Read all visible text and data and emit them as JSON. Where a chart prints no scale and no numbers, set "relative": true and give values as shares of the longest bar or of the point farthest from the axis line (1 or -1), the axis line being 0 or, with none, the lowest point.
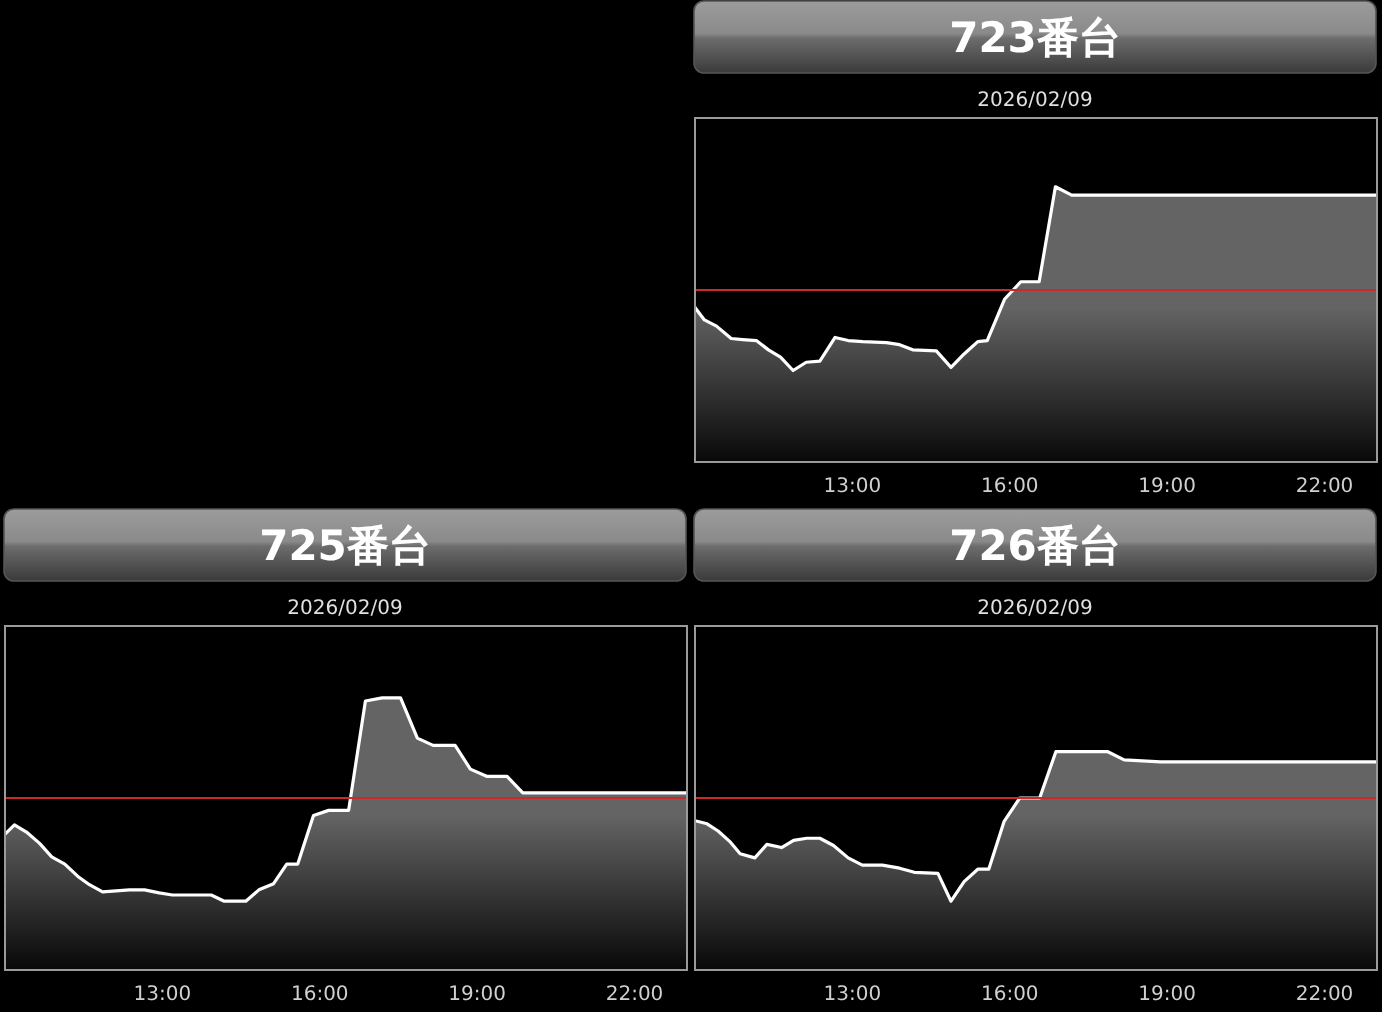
{
  "chart_data": [
    {
      "type": "area",
      "title": "723番台",
      "subtitle": "2026/02/09",
      "relative": true,
      "tick_labels": "x",
      "color": "#646464",
      "xlim": [
        10,
        23
      ],
      "xticks": [
        {
          "value": 13,
          "label": "13:00"
        },
        {
          "value": 16,
          "label": "16:00"
        },
        {
          "value": 19,
          "label": "19:00"
        },
        {
          "value": 22,
          "label": "22:00"
        }
      ],
      "ref_lines": [
        {
          "axis": "y",
          "value": 0,
          "color": "#cc2a2a"
        }
      ],
      "x": [
        10,
        10.18,
        10.41,
        10.69,
        10.91,
        11.17,
        11.4,
        11.63,
        11.87,
        12.12,
        12.38,
        12.67,
        12.92,
        13.2,
        13.65,
        13.9,
        14.15,
        14.6,
        14.88,
        15.13,
        15.39,
        15.57,
        15.9,
        16.21,
        16.56,
        16.87,
        17.18,
        23
      ],
      "values": [
        -0.17,
        -0.29,
        -0.35,
        -0.47,
        -0.48,
        -0.49,
        -0.58,
        -0.65,
        -0.78,
        -0.7,
        -0.69,
        -0.46,
        -0.49,
        -0.5,
        -0.51,
        -0.53,
        -0.58,
        -0.59,
        -0.75,
        -0.62,
        -0.5,
        -0.49,
        -0.09,
        0.08,
        0.08,
        1,
        0.92,
        0.92
      ]
    },
    {
      "type": "area",
      "title": "725番台",
      "subtitle": "2026/02/09",
      "relative": true,
      "tick_labels": "x",
      "color": "#646464",
      "xlim": [
        10,
        23
      ],
      "xticks": [
        {
          "value": 13,
          "label": "13:00"
        },
        {
          "value": 16,
          "label": "16:00"
        },
        {
          "value": 19,
          "label": "19:00"
        },
        {
          "value": 22,
          "label": "22:00"
        }
      ],
      "ref_lines": [
        {
          "axis": "y",
          "value": 0,
          "color": "#cc2a2a"
        }
      ],
      "x": [
        10,
        10.18,
        10.41,
        10.66,
        10.89,
        11.14,
        11.39,
        11.61,
        11.86,
        12.12,
        12.37,
        12.66,
        12.94,
        13.19,
        13.64,
        13.93,
        14.18,
        14.59,
        14.84,
        15.12,
        15.37,
        15.58,
        15.88,
        16.17,
        16.55,
        16.87,
        17.19,
        17.54,
        17.86,
        18.16,
        18.58,
        18.87,
        19.18,
        19.57,
        19.87,
        23
      ],
      "values": [
        -0.35,
        -0.26,
        -0.33,
        -0.44,
        -0.57,
        -0.64,
        -0.76,
        -0.84,
        -0.91,
        -0.9,
        -0.89,
        -0.89,
        -0.92,
        -0.94,
        -0.94,
        -0.94,
        -1,
        -1,
        -0.89,
        -0.83,
        -0.64,
        -0.64,
        -0.17,
        -0.12,
        -0.12,
        0.94,
        0.97,
        0.97,
        0.58,
        0.51,
        0.51,
        0.28,
        0.21,
        0.21,
        0.05,
        0.05
      ]
    },
    {
      "type": "area",
      "title": "726番台",
      "subtitle": "2026/02/09",
      "relative": true,
      "tick_labels": "x",
      "color": "#646464",
      "xlim": [
        10,
        23
      ],
      "xticks": [
        {
          "value": 13,
          "label": "13:00"
        },
        {
          "value": 16,
          "label": "16:00"
        },
        {
          "value": 19,
          "label": "19:00"
        },
        {
          "value": 22,
          "label": "22:00"
        }
      ],
      "ref_lines": [
        {
          "axis": "y",
          "value": 0,
          "color": "#cc2a2a"
        }
      ],
      "x": [
        10,
        10.23,
        10.44,
        10.66,
        10.86,
        11.14,
        11.37,
        11.65,
        11.88,
        12.13,
        12.38,
        12.64,
        12.92,
        13.19,
        13.57,
        13.9,
        14.18,
        14.63,
        14.88,
        15.13,
        15.39,
        15.6,
        15.89,
        16.19,
        16.57,
        16.88,
        17.22,
        17.86,
        18.18,
        18.87,
        23
      ],
      "values": [
        -0.22,
        -0.25,
        -0.32,
        -0.42,
        -0.54,
        -0.58,
        -0.45,
        -0.48,
        -0.41,
        -0.39,
        -0.39,
        -0.46,
        -0.58,
        -0.65,
        -0.65,
        -0.68,
        -0.72,
        -0.73,
        -1,
        -0.81,
        -0.69,
        -0.69,
        -0.23,
        0,
        0,
        0.45,
        0.45,
        0.45,
        0.37,
        0.35,
        0.35
      ]
    }
  ]
}
